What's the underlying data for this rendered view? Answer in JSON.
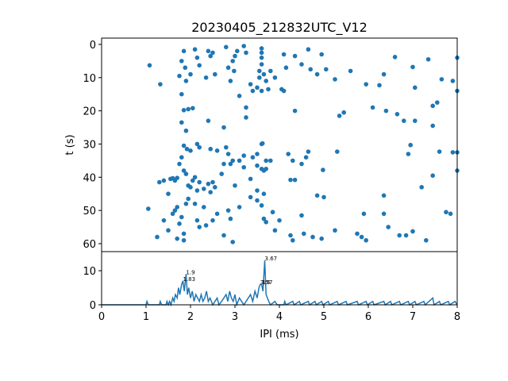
{
  "chart_data": [
    {
      "type": "scatter",
      "title": "20230405_212832UTC_V12",
      "ylabel": "t (s)",
      "color": "#1f77b4",
      "xlim": [
        0,
        8
      ],
      "ylim": [
        62.4,
        -1.9
      ],
      "yticks": [
        0,
        10,
        20,
        30,
        40,
        50,
        60
      ],
      "x": [
        1.08,
        1.32,
        1.85,
        1.8,
        1.88,
        1.75,
        2.0,
        1.9,
        2.1,
        2.15,
        2.2,
        2.4,
        2.5,
        2.35,
        2.55,
        2.45,
        2.8,
        2.85,
        2.95,
        3.0,
        2.98,
        2.9,
        3.05,
        3.2,
        3.25,
        3.35,
        3.4,
        3.6,
        3.6,
        3.6,
        3.6,
        3.55,
        3.65,
        3.55,
        3.7,
        3.5,
        3.6,
        3.75,
        3.8,
        3.9,
        4.1,
        4.15,
        4.05,
        4.1,
        4.35,
        4.5,
        4.65,
        4.7,
        4.85,
        4.95,
        5.05,
        5.25,
        5.6,
        5.95,
        6.25,
        6.35,
        6.6,
        7.0,
        7.35,
        7.05,
        7.65,
        7.9,
        8.0,
        8.0,
        1.8,
        1.85,
        1.95,
        2.05,
        1.8,
        1.9,
        2.4,
        2.75,
        3.1,
        3.25,
        3.25,
        4.35,
        5.35,
        5.45,
        6.1,
        6.4,
        6.65,
        6.8,
        7.05,
        7.45,
        7.55,
        7.45,
        1.85,
        1.92,
        2.0,
        2.15,
        2.2,
        2.45,
        2.6,
        2.8,
        2.85,
        2.95,
        3.2,
        3.4,
        3.5,
        3.6,
        3.62,
        3.7,
        3.65,
        3.5,
        3.8,
        4.2,
        4.3,
        4.5,
        4.6,
        4.65,
        4.98,
        5.3,
        6.9,
        6.95,
        7.6,
        7.9,
        8.0,
        8.0,
        7.45,
        7.2,
        1.3,
        1.4,
        1.5,
        1.55,
        1.6,
        1.65,
        1.7,
        1.75,
        1.8,
        1.85,
        1.9,
        1.95,
        2.0,
        2.05,
        2.1,
        2.15,
        2.2,
        2.3,
        2.4,
        2.5,
        2.7,
        2.75,
        2.9,
        3.0,
        3.1,
        3.2,
        3.35,
        3.5,
        3.6,
        3.7,
        3.65,
        4.25,
        4.35,
        4.85,
        5.0,
        6.35,
        1.05,
        1.25,
        1.4,
        1.5,
        1.6,
        1.65,
        1.7,
        1.75,
        1.8,
        1.85,
        1.9,
        1.95,
        2.1,
        2.15,
        2.2,
        2.3,
        2.35,
        2.45,
        2.55,
        2.6,
        2.75,
        2.85,
        2.9,
        2.95,
        3.1,
        3.35,
        3.5,
        3.6,
        3.65,
        3.7,
        3.85,
        3.9,
        4.0,
        4.25,
        4.3,
        4.5,
        4.55,
        4.75,
        4.95,
        5.25,
        5.75,
        5.85,
        5.95,
        5.9,
        6.35,
        6.45,
        6.7,
        6.85,
        7.0,
        7.3,
        7.75,
        7.85,
        1.85,
        1.7,
        2.5
      ],
      "values": [
        6.3,
        12,
        2,
        5,
        7,
        9.5,
        9,
        11,
        1.5,
        4,
        6.3,
        2,
        2.5,
        10,
        9,
        3.5,
        0.8,
        7,
        5,
        3.5,
        8,
        11,
        2,
        0.5,
        2.5,
        12,
        14,
        1.2,
        2.5,
        4,
        6,
        8,
        9,
        10,
        11,
        13,
        14,
        13.5,
        8,
        10,
        3,
        7,
        13.5,
        14,
        3.5,
        6,
        1.5,
        7.5,
        9,
        3,
        7.5,
        10.5,
        8,
        12,
        12.3,
        9,
        3.8,
        6.8,
        4.5,
        13,
        10.5,
        11,
        4,
        14,
        15,
        19.8,
        19.5,
        19.2,
        23.5,
        26,
        23,
        25,
        15.5,
        19,
        22,
        20,
        21.5,
        20.5,
        19,
        20,
        21,
        23,
        23,
        18.5,
        17.5,
        24.5,
        30.5,
        31.5,
        32,
        30,
        31,
        31.5,
        32,
        31,
        33,
        35,
        33.5,
        34,
        33,
        30,
        29.8,
        35,
        38,
        36.5,
        35,
        33,
        35,
        36,
        34,
        32.3,
        37.8,
        32.3,
        33,
        30.3,
        32.3,
        32.5,
        32.5,
        38,
        39.5,
        43,
        41.5,
        41,
        45,
        40.5,
        40.3,
        41,
        40.2,
        36,
        34,
        38,
        39,
        42.5,
        43,
        41,
        40,
        44,
        41.5,
        43.5,
        42,
        41.5,
        39,
        36,
        36,
        42.5,
        35,
        37,
        40.5,
        44,
        37.5,
        37.5,
        45,
        40.8,
        40.8,
        45.5,
        46,
        45.5,
        49.5,
        58,
        53,
        56,
        51,
        50,
        49,
        54,
        52,
        57,
        48,
        46.5,
        48,
        53,
        55,
        49,
        54.5,
        44.5,
        43,
        51,
        57.5,
        50,
        52.5,
        59.5,
        49,
        46,
        47,
        48.5,
        52.5,
        53.5,
        50.5,
        56,
        53,
        57.5,
        59,
        51.5,
        57,
        58,
        58.5,
        56,
        57,
        58,
        59,
        51,
        51,
        55,
        57.5,
        57.5,
        56.3,
        59,
        50.5,
        51,
        59,
        58.5,
        53
      ]
    },
    {
      "type": "line",
      "xlabel": "IPI (ms)",
      "color": "#1f77b4",
      "xlim": [
        0,
        8
      ],
      "xticks": [
        0,
        1,
        2,
        3,
        4,
        5,
        6,
        7,
        8
      ],
      "ylim": [
        0,
        15.6
      ],
      "yticks": [
        0,
        10
      ],
      "x": [
        0,
        1.0,
        1.02,
        1.05,
        1.3,
        1.32,
        1.35,
        1.45,
        1.47,
        1.5,
        1.53,
        1.56,
        1.6,
        1.63,
        1.66,
        1.7,
        1.73,
        1.76,
        1.8,
        1.83,
        1.86,
        1.9,
        1.93,
        1.96,
        2.0,
        2.04,
        2.08,
        2.12,
        2.16,
        2.2,
        2.24,
        2.28,
        2.32,
        2.36,
        2.4,
        2.44,
        2.5,
        2.55,
        2.6,
        2.64,
        2.7,
        2.75,
        2.8,
        2.84,
        2.88,
        2.92,
        2.96,
        3.0,
        3.04,
        3.1,
        3.15,
        3.2,
        3.25,
        3.3,
        3.35,
        3.4,
        3.45,
        3.5,
        3.54,
        3.57,
        3.6,
        3.63,
        3.67,
        3.7,
        3.73,
        3.76,
        3.8,
        3.9,
        3.95,
        4.1,
        4.12,
        4.15,
        4.3,
        4.33,
        4.45,
        4.48,
        4.65,
        4.68,
        4.8,
        4.83,
        4.95,
        4.98,
        5.1,
        5.13,
        5.3,
        5.33,
        5.5,
        5.53,
        5.75,
        5.78,
        5.95,
        5.98,
        6.1,
        6.13,
        6.35,
        6.38,
        6.5,
        6.53,
        6.7,
        6.73,
        6.9,
        6.93,
        7.05,
        7.08,
        7.25,
        7.28,
        7.45,
        7.48,
        7.6,
        7.63,
        7.8,
        7.83,
        7.95,
        8.0
      ],
      "values": [
        0,
        0,
        1,
        0,
        0,
        1,
        0,
        0,
        1,
        0,
        1,
        0,
        2,
        1,
        3,
        2,
        5,
        3,
        6,
        7,
        4,
        9,
        3,
        5,
        2,
        4,
        1,
        3,
        2,
        1,
        3,
        1,
        2,
        4,
        1,
        2,
        0,
        1,
        2,
        0,
        1,
        2,
        3,
        1,
        4,
        2,
        1,
        3,
        0,
        2,
        1,
        0,
        1,
        2,
        3,
        1,
        4,
        2,
        5,
        6,
        6,
        4,
        13,
        3,
        2,
        1,
        0,
        1,
        0,
        0,
        1,
        0,
        1,
        0,
        1,
        0,
        1,
        0,
        1,
        0,
        1,
        0,
        1,
        0,
        1,
        0,
        1,
        0,
        1,
        0,
        1,
        0,
        1,
        0,
        1,
        0,
        1,
        0,
        1,
        0,
        1,
        0,
        1,
        0,
        1,
        0,
        2,
        0,
        1,
        0,
        1,
        0,
        1,
        0
      ],
      "annotations": [
        {
          "x": 1.9,
          "y": 9,
          "text": "1.9"
        },
        {
          "x": 1.83,
          "y": 7,
          "text": "1.83"
        },
        {
          "x": 3.67,
          "y": 13,
          "text": "3.67"
        },
        {
          "x": 3.57,
          "y": 6,
          "text": "3.57"
        },
        {
          "x": 3.6,
          "y": 6,
          "text": "3.6"
        }
      ]
    }
  ]
}
